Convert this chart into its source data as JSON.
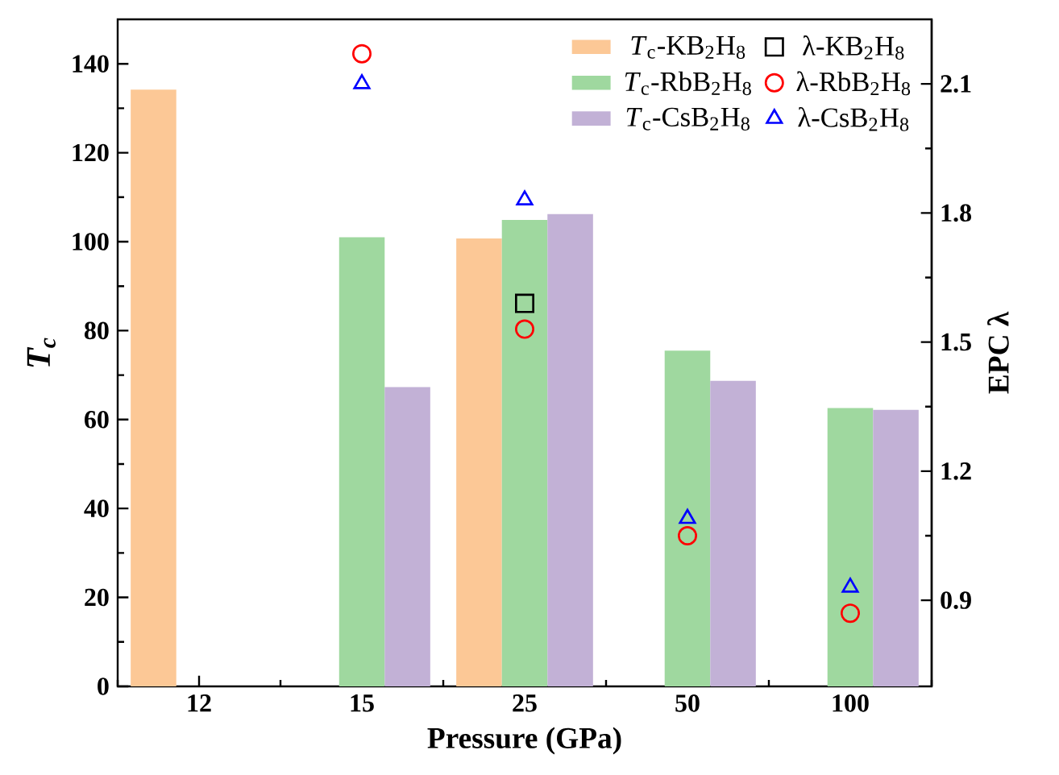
{
  "chart_data": {
    "type": "bar",
    "xlabel": "Pressure (GPa)",
    "ylabel": "*T*$_{c}$",
    "y2label": "EPC λ",
    "categories": [
      "12",
      "15",
      "25",
      "50",
      "100"
    ],
    "ylim": [
      0,
      150
    ],
    "yticks": [
      0,
      20,
      40,
      60,
      80,
      100,
      120,
      140
    ],
    "y2lim": [
      0.7,
      2.25
    ],
    "y2ticks": [
      0.9,
      1.2,
      1.5,
      1.8,
      2.1
    ],
    "legend": "top right",
    "grid": false,
    "series": [
      {
        "name": "*T*$_{c}$-KB$_{2}$H$_{8}$",
        "color": "#fcc896",
        "values": [
          134.2,
          null,
          100.7,
          null,
          null
        ]
      },
      {
        "name": "*T*$_{c}$-RbB$_{2}$H$_{8}$",
        "color": "#9fd89f",
        "values": [
          null,
          101,
          104.9,
          75.5,
          62.6
        ]
      },
      {
        "name": "*T*$_{c}$-CsB$_{2}$H$_{8}$",
        "color": "#c2b1d6",
        "values": [
          null,
          67.3,
          106.2,
          68.7,
          62.2
        ]
      },
      {
        "name": "λ-KB$_{2}$H$_{8}$",
        "type": "scatter",
        "axis": "y2",
        "marker": "square",
        "color": "#000000",
        "values": [
          null,
          null,
          1.59,
          null,
          null
        ]
      },
      {
        "name": "λ-RbB$_{2}$H$_{8}$",
        "type": "scatter",
        "axis": "y2",
        "marker": "circle",
        "color": "#ff0000",
        "values": [
          null,
          2.17,
          1.53,
          1.05,
          0.87
        ]
      },
      {
        "name": "λ-CsB$_{2}$H$_{8}$",
        "type": "scatter",
        "axis": "y2",
        "marker": "triangle",
        "color": "#0000ff",
        "values": [
          null,
          2.1,
          1.83,
          1.09,
          0.93
        ]
      }
    ]
  }
}
